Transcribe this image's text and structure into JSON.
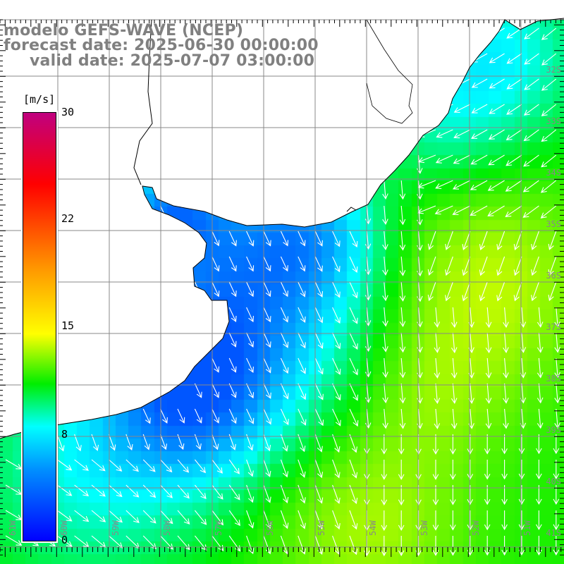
{
  "title": {
    "line1": "modelo GEFS-WAVE (NCEP)",
    "line2": "forecast date: 2025-06-30 00:00:00",
    "line3": "valid date: 2025-07-07 03:00:00"
  },
  "colorbar": {
    "unit": "[m/s]",
    "ticks": [
      "30",
      "22",
      "15",
      "8",
      "0"
    ],
    "min": 0,
    "max": 30,
    "stops": [
      {
        "value": 0,
        "color": "#0000ff"
      },
      {
        "value": 5,
        "color": "#0090ff"
      },
      {
        "value": 8,
        "color": "#00ffff"
      },
      {
        "value": 11,
        "color": "#00ee00"
      },
      {
        "value": 14.5,
        "color": "#ffff00"
      },
      {
        "value": 19,
        "color": "#ff9900"
      },
      {
        "value": 25,
        "color": "#ff0000"
      },
      {
        "value": 30,
        "color": "#c0007f"
      }
    ]
  },
  "axes": {
    "lat_labels": [
      "32S",
      "33S",
      "34S",
      "35S",
      "36S",
      "37S",
      "38S",
      "39S",
      "40S",
      "41S"
    ],
    "lon_labels": [
      "61W",
      "60W",
      "59W",
      "58W",
      "57W",
      "56W",
      "55W",
      "54W",
      "53W",
      "52W",
      "51W"
    ]
  },
  "colors": {
    "grid": "#888888",
    "land": "#ffffff",
    "coast": "#000000",
    "arrow": "#ffffff",
    "title": "#808080"
  }
}
